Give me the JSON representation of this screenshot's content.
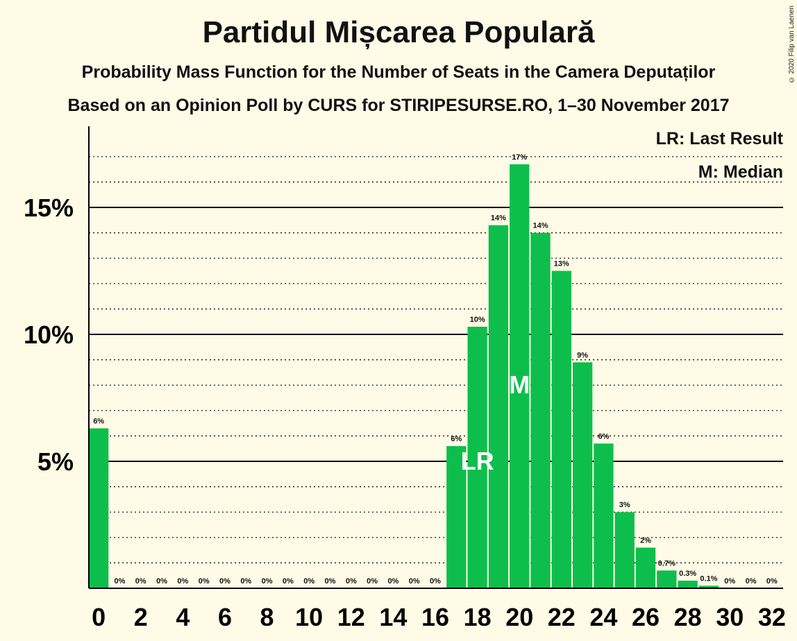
{
  "title": "Partidul Mișcarea Populară",
  "subtitle1": "Probability Mass Function for the Number of Seats in the Camera Deputaților",
  "subtitle2": "Based on an Opinion Poll by CURS for STIRIPESURSE.RO, 1–30 November 2017",
  "copyright": "© 2020 Filip van Laenen",
  "legend": {
    "lr": "LR: Last Result",
    "m": "M: Median"
  },
  "colors": {
    "bar": "#0EBE4C",
    "background": "#FFFBE6",
    "axis": "#000000"
  },
  "chart_data": {
    "type": "bar",
    "title": "Partidul Mișcarea Populară",
    "xlabel": "Number of Seats",
    "ylabel": "Probability",
    "ylim": [
      0,
      18
    ],
    "y_ticks": [
      5,
      10,
      15
    ],
    "y_tick_labels": [
      "5%",
      "10%",
      "15%"
    ],
    "categories": [
      0,
      1,
      2,
      3,
      4,
      5,
      6,
      7,
      8,
      9,
      10,
      11,
      12,
      13,
      14,
      15,
      16,
      17,
      18,
      19,
      20,
      21,
      22,
      23,
      24,
      25,
      26,
      27,
      28,
      29,
      30,
      31,
      32
    ],
    "x_tick_labels": [
      "0",
      "2",
      "4",
      "6",
      "8",
      "10",
      "12",
      "14",
      "16",
      "18",
      "20",
      "22",
      "24",
      "26",
      "28",
      "30",
      "32"
    ],
    "values": [
      6.3,
      0,
      0,
      0,
      0,
      0,
      0,
      0,
      0,
      0,
      0,
      0,
      0,
      0,
      0,
      0,
      0,
      5.6,
      10.3,
      14.3,
      16.7,
      14.0,
      12.5,
      8.9,
      5.7,
      3.0,
      1.6,
      0.7,
      0.3,
      0.1,
      0,
      0,
      0
    ],
    "labels": [
      "6%",
      "0%",
      "0%",
      "0%",
      "0%",
      "0%",
      "0%",
      "0%",
      "0%",
      "0%",
      "0%",
      "0%",
      "0%",
      "0%",
      "0%",
      "0%",
      "0%",
      "6%",
      "10%",
      "14%",
      "17%",
      "14%",
      "13%",
      "9%",
      "6%",
      "3%",
      "2%",
      "0.7%",
      "0.3%",
      "0.1%",
      "0%",
      "0%",
      "0%"
    ],
    "last_result": 18,
    "median": 20,
    "lr_label": "LR",
    "m_label": "M"
  }
}
